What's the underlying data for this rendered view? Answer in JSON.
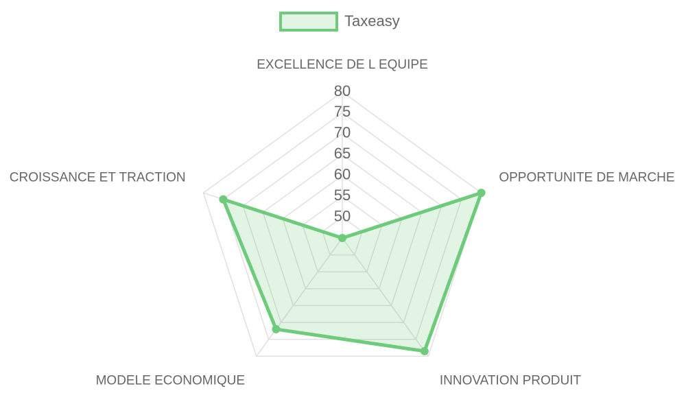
{
  "chart_data": {
    "type": "radar",
    "categories": [
      "EXCELLENCE DE L EQUIPE",
      "OPPORTUNITE DE MARCHE",
      "INNOVATION PRODUIT",
      "MODELE ECONOMIQUE",
      "CROISSANCE ET TRACTION"
    ],
    "series": [
      {
        "name": "Taxeasy",
        "color": "#6ecb7b",
        "values": [
          45,
          80,
          78.5,
          72,
          75
        ]
      }
    ],
    "ylim": [
      45,
      80
    ],
    "yticks": [
      50,
      55,
      60,
      65,
      70,
      75,
      80
    ],
    "grid": true,
    "legend": "top"
  }
}
